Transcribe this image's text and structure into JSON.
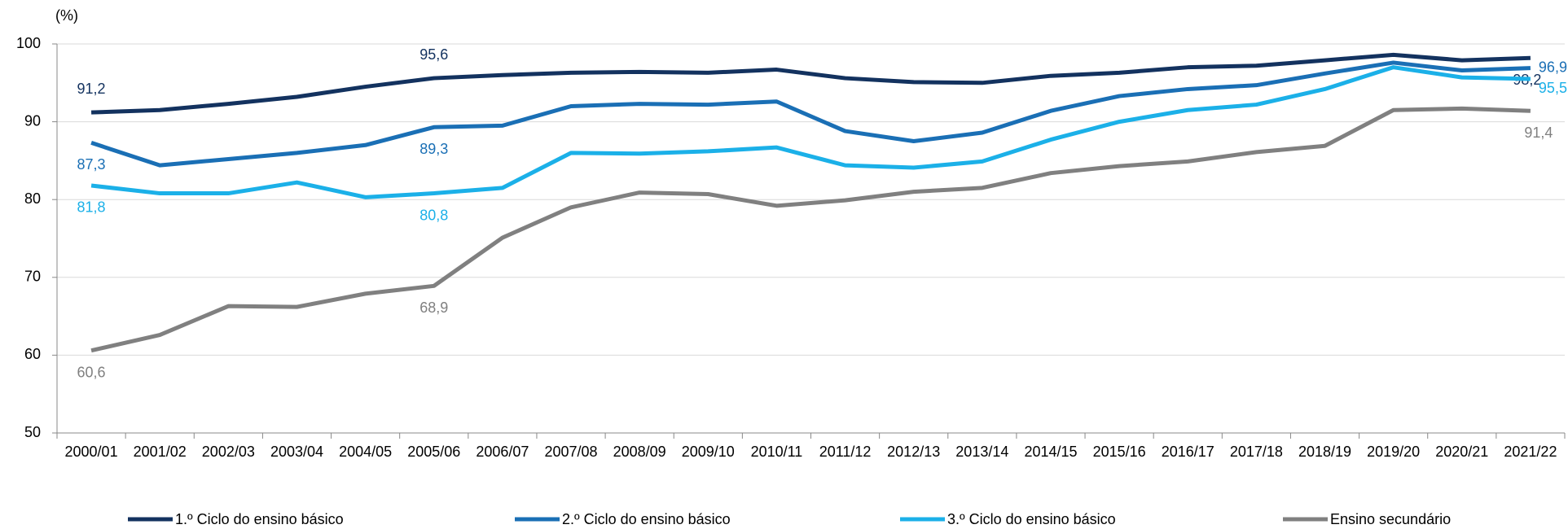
{
  "chart_data": {
    "type": "line",
    "ylabel": "(%)",
    "categories": [
      "2000/01",
      "2001/02",
      "2002/03",
      "2003/04",
      "2004/05",
      "2005/06",
      "2006/07",
      "2007/08",
      "2008/09",
      "2009/10",
      "2010/11",
      "2011/12",
      "2012/13",
      "2013/14",
      "2014/15",
      "2015/16",
      "2016/17",
      "2017/18",
      "2018/19",
      "2019/20",
      "2020/21",
      "2021/22"
    ],
    "series": [
      {
        "name": "1.º Ciclo do ensino básico",
        "color": "#13325f",
        "values": [
          91.2,
          91.5,
          92.3,
          93.2,
          94.5,
          95.6,
          96.0,
          96.3,
          96.4,
          96.3,
          96.7,
          95.6,
          95.1,
          95.0,
          95.9,
          96.3,
          97.0,
          97.2,
          97.9,
          98.6,
          97.9,
          98.2
        ],
        "value_labels": [
          "91,2",
          null,
          null,
          null,
          null,
          "95,6",
          null,
          null,
          null,
          null,
          null,
          null,
          null,
          null,
          null,
          null,
          null,
          null,
          null,
          null,
          null,
          "98,2"
        ]
      },
      {
        "name": "2.º Ciclo do ensino básico",
        "color": "#1a6fb5",
        "values": [
          87.3,
          84.4,
          85.2,
          86.0,
          87.0,
          89.3,
          89.5,
          92.0,
          92.3,
          92.2,
          92.6,
          88.8,
          87.5,
          88.6,
          91.4,
          93.3,
          94.2,
          94.7,
          96.2,
          97.6,
          96.6,
          96.9
        ],
        "value_labels": [
          "87,3",
          null,
          null,
          null,
          null,
          "89,3",
          null,
          null,
          null,
          null,
          null,
          null,
          null,
          null,
          null,
          null,
          null,
          null,
          null,
          null,
          null,
          "96,9"
        ]
      },
      {
        "name": "3.º Ciclo do ensino básico",
        "color": "#1bb0e8",
        "values": [
          81.8,
          80.8,
          80.8,
          82.2,
          80.3,
          80.8,
          81.5,
          86.0,
          85.9,
          86.2,
          86.7,
          84.4,
          84.1,
          84.9,
          87.7,
          90.0,
          91.5,
          92.2,
          94.2,
          97.0,
          95.7,
          95.5
        ],
        "value_labels": [
          "81,8",
          null,
          null,
          null,
          null,
          "80,8",
          null,
          null,
          null,
          null,
          null,
          null,
          null,
          null,
          null,
          null,
          null,
          null,
          null,
          null,
          null,
          "95,5"
        ]
      },
      {
        "name": "Ensino secundário",
        "color": "#808080",
        "values": [
          60.6,
          62.6,
          66.3,
          66.2,
          67.9,
          68.9,
          75.1,
          79.0,
          80.9,
          80.7,
          79.2,
          79.9,
          81.0,
          81.5,
          83.4,
          84.3,
          84.9,
          86.1,
          86.9,
          91.5,
          91.7,
          91.4
        ],
        "value_labels": [
          "60,6",
          null,
          null,
          null,
          null,
          "68,9",
          null,
          null,
          null,
          null,
          null,
          null,
          null,
          null,
          null,
          null,
          null,
          null,
          null,
          null,
          null,
          "91,4"
        ]
      }
    ],
    "ylim": [
      50,
      100
    ],
    "yticks": [
      50,
      60,
      70,
      80,
      90,
      100
    ],
    "grid": true,
    "legend": "bottom"
  }
}
